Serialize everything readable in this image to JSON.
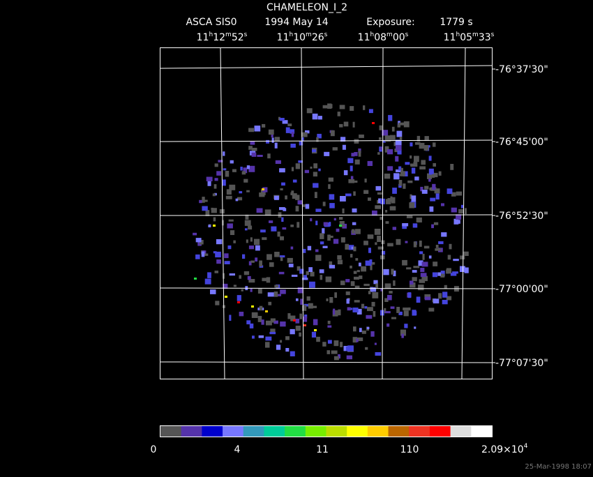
{
  "header": {
    "title": "CHAMELEON_I_2",
    "instrument": "ASCA SIS0",
    "date": "1994 May 14",
    "exposure_label": "Exposure:",
    "exposure": "1779 s"
  },
  "ra_labels": [
    [
      "11",
      "h",
      "12",
      "m",
      "52",
      "s"
    ],
    [
      "11",
      "h",
      "10",
      "m",
      "26",
      "s"
    ],
    [
      "11",
      "h",
      "08",
      "m",
      "00",
      "s"
    ],
    [
      "11",
      "h",
      "05",
      "m",
      "33",
      "s"
    ]
  ],
  "dec_labels": [
    "-76°37'30\"",
    "-76°45'00\"",
    "-76°52'30\"",
    "-77°00'00\"",
    "-77°07'30\""
  ],
  "colorbar": {
    "colors": [
      "#555555",
      "#5533aa",
      "#0000cc",
      "#7777ff",
      "#3399bb",
      "#00cc99",
      "#22dd44",
      "#77ee00",
      "#bbdd00",
      "#ffff00",
      "#ffcc00",
      "#bb6600",
      "#ee3322",
      "#ff0000",
      "#dddddd",
      "#ffffff"
    ],
    "labels": [
      "0",
      "4",
      "11",
      "110"
    ],
    "max_label": "2.09×10",
    "max_exponent": "4"
  },
  "footer": "25-Mar-1998 18:07"
}
